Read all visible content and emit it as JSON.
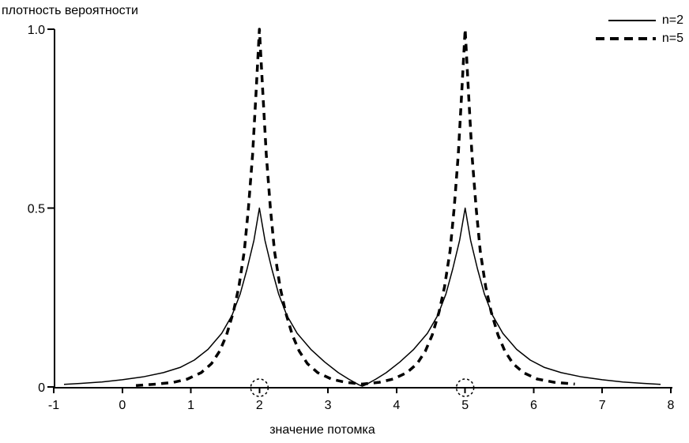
{
  "chart_data": {
    "type": "line",
    "title": "",
    "ylabel": "плотность вероятности",
    "xlabel": "значение потомка",
    "xlim": [
      -1,
      8
    ],
    "ylim": [
      0,
      1.0
    ],
    "x_ticks": [
      -1,
      0,
      1,
      2,
      3,
      4,
      5,
      6,
      7,
      8
    ],
    "y_ticks": [
      {
        "value": 0,
        "label": "0"
      },
      {
        "value": 0.5,
        "label": "0.5"
      },
      {
        "value": 1,
        "label": "1.0"
      }
    ],
    "grid": false,
    "legend_position": "top-right",
    "colors": {
      "foreground": "#000000",
      "background": "#ffffff"
    },
    "parent_markers": {
      "x": [
        2,
        5
      ],
      "shape": "dashed-circle-on-axis"
    },
    "series": [
      {
        "name": "n=2",
        "style": "solid",
        "stroke_width": 1.5,
        "color": "#000000",
        "points": [
          [
            -0.85,
            0.007
          ],
          [
            -0.6,
            0.01
          ],
          [
            -0.3,
            0.014
          ],
          [
            0,
            0.02
          ],
          [
            0.3,
            0.028
          ],
          [
            0.6,
            0.04
          ],
          [
            0.85,
            0.055
          ],
          [
            1.05,
            0.075
          ],
          [
            1.25,
            0.105
          ],
          [
            1.45,
            0.15
          ],
          [
            1.6,
            0.2
          ],
          [
            1.72,
            0.26
          ],
          [
            1.82,
            0.33
          ],
          [
            1.92,
            0.41
          ],
          [
            2,
            0.5
          ],
          [
            2.08,
            0.41
          ],
          [
            2.18,
            0.33
          ],
          [
            2.28,
            0.26
          ],
          [
            2.4,
            0.2
          ],
          [
            2.55,
            0.15
          ],
          [
            2.75,
            0.105
          ],
          [
            2.95,
            0.07
          ],
          [
            3.15,
            0.04
          ],
          [
            3.3,
            0.022
          ],
          [
            3.45,
            0.006
          ],
          [
            3.5,
            0.002
          ],
          [
            3.55,
            0.006
          ],
          [
            3.7,
            0.022
          ],
          [
            3.85,
            0.04
          ],
          [
            4.05,
            0.07
          ],
          [
            4.25,
            0.105
          ],
          [
            4.45,
            0.15
          ],
          [
            4.6,
            0.2
          ],
          [
            4.72,
            0.26
          ],
          [
            4.82,
            0.33
          ],
          [
            4.92,
            0.41
          ],
          [
            5,
            0.5
          ],
          [
            5.08,
            0.41
          ],
          [
            5.18,
            0.33
          ],
          [
            5.28,
            0.26
          ],
          [
            5.4,
            0.2
          ],
          [
            5.55,
            0.15
          ],
          [
            5.75,
            0.105
          ],
          [
            5.95,
            0.075
          ],
          [
            6.15,
            0.055
          ],
          [
            6.4,
            0.04
          ],
          [
            6.7,
            0.028
          ],
          [
            7,
            0.02
          ],
          [
            7.3,
            0.014
          ],
          [
            7.6,
            0.01
          ],
          [
            7.85,
            0.007
          ]
        ]
      },
      {
        "name": "n=5",
        "style": "dashed",
        "stroke_width": 3.5,
        "dash": [
          9,
          7
        ],
        "color": "#000000",
        "points": [
          [
            0.2,
            0.004
          ],
          [
            0.5,
            0.008
          ],
          [
            0.75,
            0.013
          ],
          [
            0.95,
            0.022
          ],
          [
            1.15,
            0.04
          ],
          [
            1.3,
            0.065
          ],
          [
            1.42,
            0.1
          ],
          [
            1.52,
            0.145
          ],
          [
            1.62,
            0.21
          ],
          [
            1.7,
            0.28
          ],
          [
            1.78,
            0.38
          ],
          [
            1.84,
            0.5
          ],
          [
            1.9,
            0.65
          ],
          [
            1.95,
            0.82
          ],
          [
            2,
            1.0
          ],
          [
            2.05,
            0.82
          ],
          [
            2.1,
            0.65
          ],
          [
            2.16,
            0.5
          ],
          [
            2.22,
            0.38
          ],
          [
            2.3,
            0.28
          ],
          [
            2.38,
            0.21
          ],
          [
            2.48,
            0.145
          ],
          [
            2.58,
            0.1
          ],
          [
            2.7,
            0.065
          ],
          [
            2.85,
            0.04
          ],
          [
            3.05,
            0.022
          ],
          [
            3.25,
            0.013
          ],
          [
            3.5,
            0.008
          ],
          [
            3.75,
            0.013
          ],
          [
            3.95,
            0.022
          ],
          [
            4.15,
            0.04
          ],
          [
            4.3,
            0.065
          ],
          [
            4.42,
            0.1
          ],
          [
            4.52,
            0.145
          ],
          [
            4.62,
            0.21
          ],
          [
            4.7,
            0.28
          ],
          [
            4.78,
            0.38
          ],
          [
            4.84,
            0.5
          ],
          [
            4.9,
            0.65
          ],
          [
            4.95,
            0.82
          ],
          [
            5,
            1.0
          ],
          [
            5.05,
            0.82
          ],
          [
            5.1,
            0.65
          ],
          [
            5.16,
            0.5
          ],
          [
            5.22,
            0.38
          ],
          [
            5.3,
            0.28
          ],
          [
            5.38,
            0.21
          ],
          [
            5.48,
            0.145
          ],
          [
            5.58,
            0.1
          ],
          [
            5.7,
            0.065
          ],
          [
            5.85,
            0.04
          ],
          [
            6.05,
            0.022
          ],
          [
            6.3,
            0.013
          ],
          [
            6.6,
            0.008
          ]
        ]
      }
    ]
  }
}
